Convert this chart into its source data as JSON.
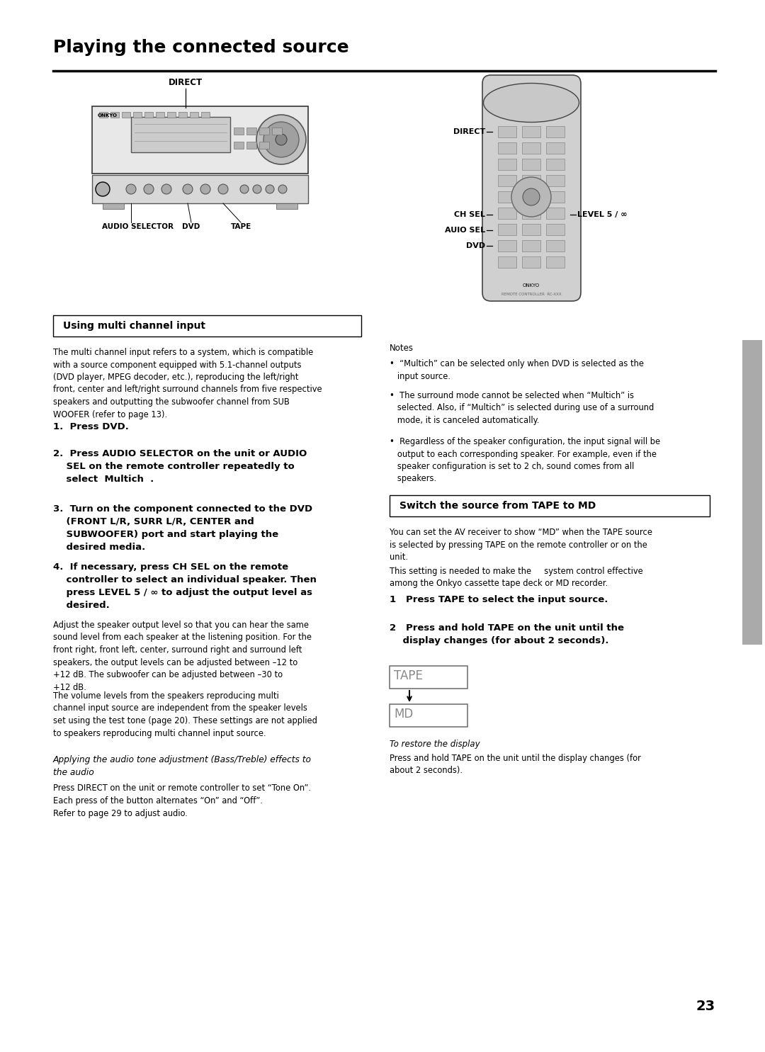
{
  "bg_color": "#ffffff",
  "page_number": "23",
  "title": "Playing the connected source",
  "section1_header": "Using multi channel input",
  "section2_header": "Switch the source from TAPE to MD",
  "section1_body": "The multi channel input refers to a system, which is compatible\nwith a source component equipped with 5.1-channel outputs\n(DVD player, MPEG decoder, etc.), reproducing the left/right\nfront, center and left/right surround channels from five respective\nspeakers and outputting the subwoofer channel from SUB\nWOOFER (refer to page 13).",
  "step1": "1.  Press DVD.",
  "step2_bold": "2.  Press AUDIO SELECTOR on the unit or AUDIO\n    SEL on the remote controller repeatedly to\n    select  Multich  .",
  "step3_bold": "3.  Turn on the component connected to the DVD\n    (FRONT L/R, SURR L/R, CENTER and\n    SUBWOOFER) port and start playing the\n    desired media.",
  "step4_bold": "4.  If necessary, press CH SEL on the remote\n    controller to select an individual speaker. Then\n    press LEVEL 5 / ∞ to adjust the output level as\n    desired.",
  "step4_body1": "Adjust the speaker output level so that you can hear the same\nsound level from each speaker at the listening position. For the\nfront right, front left, center, surround right and surround left\nspeakers, the output levels can be adjusted between –12 to\n+12 dB. The subwoofer can be adjusted between –30 to\n+12 dB.",
  "step4_body2": "The volume levels from the speakers reproducing multi\nchannel input source are independent from the speaker levels\nset using the test tone (page 20). These settings are not applied\nto speakers reproducing multi channel input source.",
  "applying_header": "Applying the audio tone adjustment (Bass/Treble) effects to\nthe audio",
  "applying_body1": "Press DIRECT on the unit or remote controller to set “Tone On”.",
  "applying_body2": "Each press of the button alternates “On” and “Off”.",
  "applying_body3": "Refer to page 29 to adjust audio.",
  "notes_header": "Notes",
  "note1": "•  “Multich” can be selected only when DVD is selected as the\n   input source.",
  "note2": "•  The surround mode cannot be selected when “Multich” is\n   selected. Also, if “Multich” is selected during use of a surround\n   mode, it is canceled automatically.",
  "note3": "•  Regardless of the speaker configuration, the input signal will be\n   output to each corresponding speaker. For example, even if the\n   speaker configuration is set to 2 ch, sound comes from all\n   speakers.",
  "section2_body1": "You can set the AV receiver to show “MD” when the TAPE source\nis selected by pressing TAPE on the remote controller or on the\nunit.",
  "section2_body2": "This setting is needed to make the     system control effective\namong the Onkyo cassette tape deck or MD recorder.",
  "r_step1_bold": "1   Press TAPE to select the input source.",
  "r_step2_bold": "2   Press and hold TAPE on the unit until the\n    display changes (for about 2 seconds).",
  "restore_header": "To restore the display",
  "restore_body": "Press and hold TAPE on the unit until the display changes (for\nabout 2 seconds)."
}
